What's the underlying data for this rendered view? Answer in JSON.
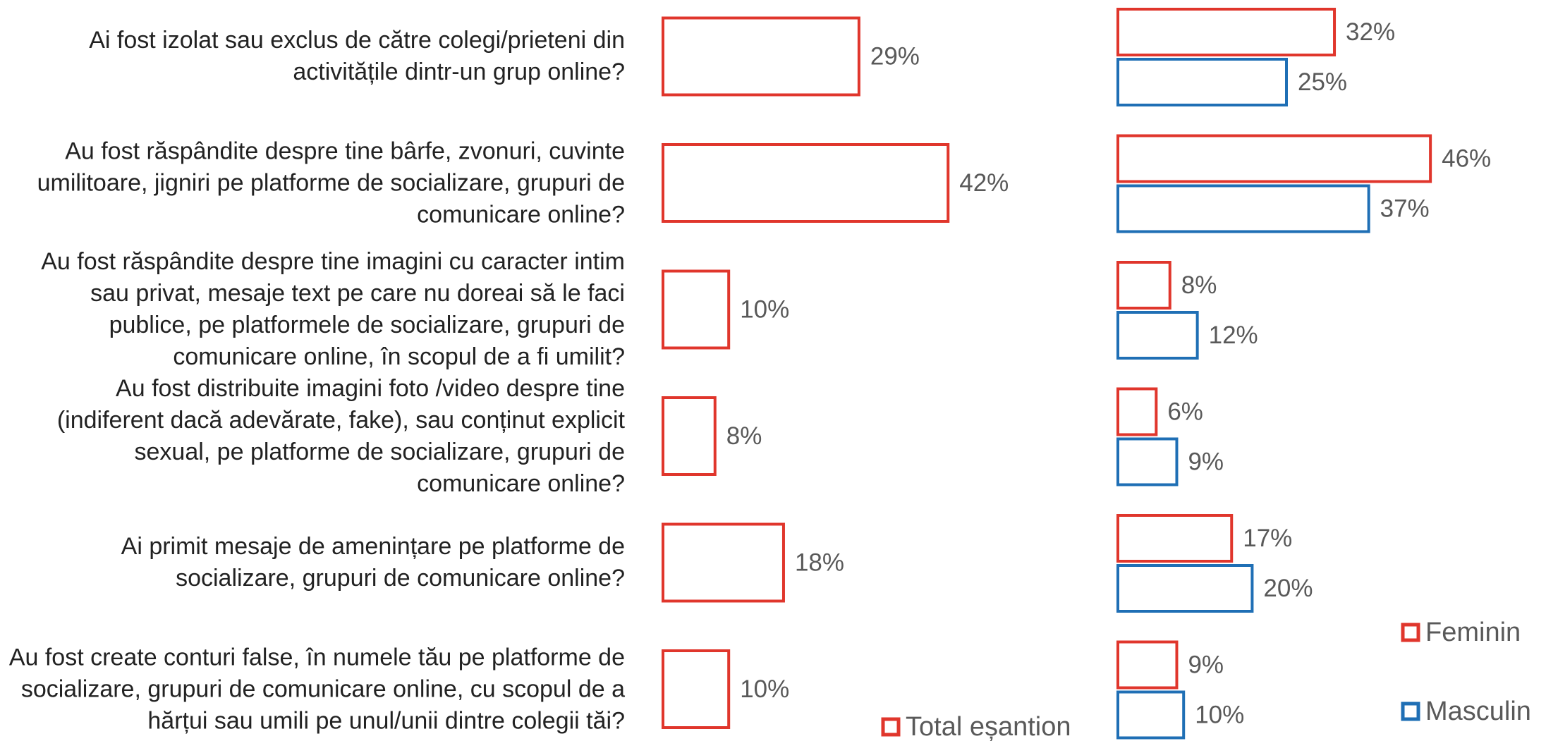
{
  "chart_data": [
    {
      "type": "bar",
      "orientation": "horizontal",
      "categories": [
        "Ai fost izolat sau exclus de către colegi/prieteni din activitățile dintr-un grup online?",
        "Au fost răspândite despre tine bârfe, zvonuri, cuvinte umilitoare, jigniri pe platforme de socializare, grupuri de comunicare online?",
        "Au fost răspândite despre tine imagini cu caracter intim sau privat, mesaje text pe care nu doreai să le faci publice, pe platformele de socializare, grupuri de comunicare online, în scopul de a fi umilit?",
        "Au fost distribuite imagini foto /video despre tine (indiferent dacă adevărate, fake), sau conținut explicit sexual, pe platforme de socializare, grupuri de comunicare online?",
        "Ai primit mesaje de amenințare pe platforme de socializare, grupuri de comunicare online?",
        "Au fost create conturi false, în numele tău pe platforme de socializare, grupuri de comunicare online, cu scopul de a hărțui sau umili pe unul/unii dintre colegii tăi?"
      ],
      "series": [
        {
          "name": "Total eșantion",
          "color": "#e0362c",
          "values": [
            29,
            42,
            10,
            8,
            18,
            10
          ],
          "value_labels": [
            "29%",
            "42%",
            "10%",
            "8%",
            "18%",
            "10%"
          ]
        }
      ]
    },
    {
      "type": "bar",
      "orientation": "horizontal",
      "series": [
        {
          "name": "Feminin",
          "color": "#e0362c",
          "values": [
            32,
            46,
            8,
            6,
            17,
            9
          ],
          "value_labels": [
            "32%",
            "46%",
            "8%",
            "6%",
            "17%",
            "9%"
          ]
        },
        {
          "name": "Masculin",
          "color": "#1f6fb5",
          "values": [
            25,
            37,
            12,
            9,
            20,
            10
          ],
          "value_labels": [
            "25%",
            "37%",
            "12%",
            "9%",
            "20%",
            "10%"
          ]
        }
      ]
    }
  ]
}
